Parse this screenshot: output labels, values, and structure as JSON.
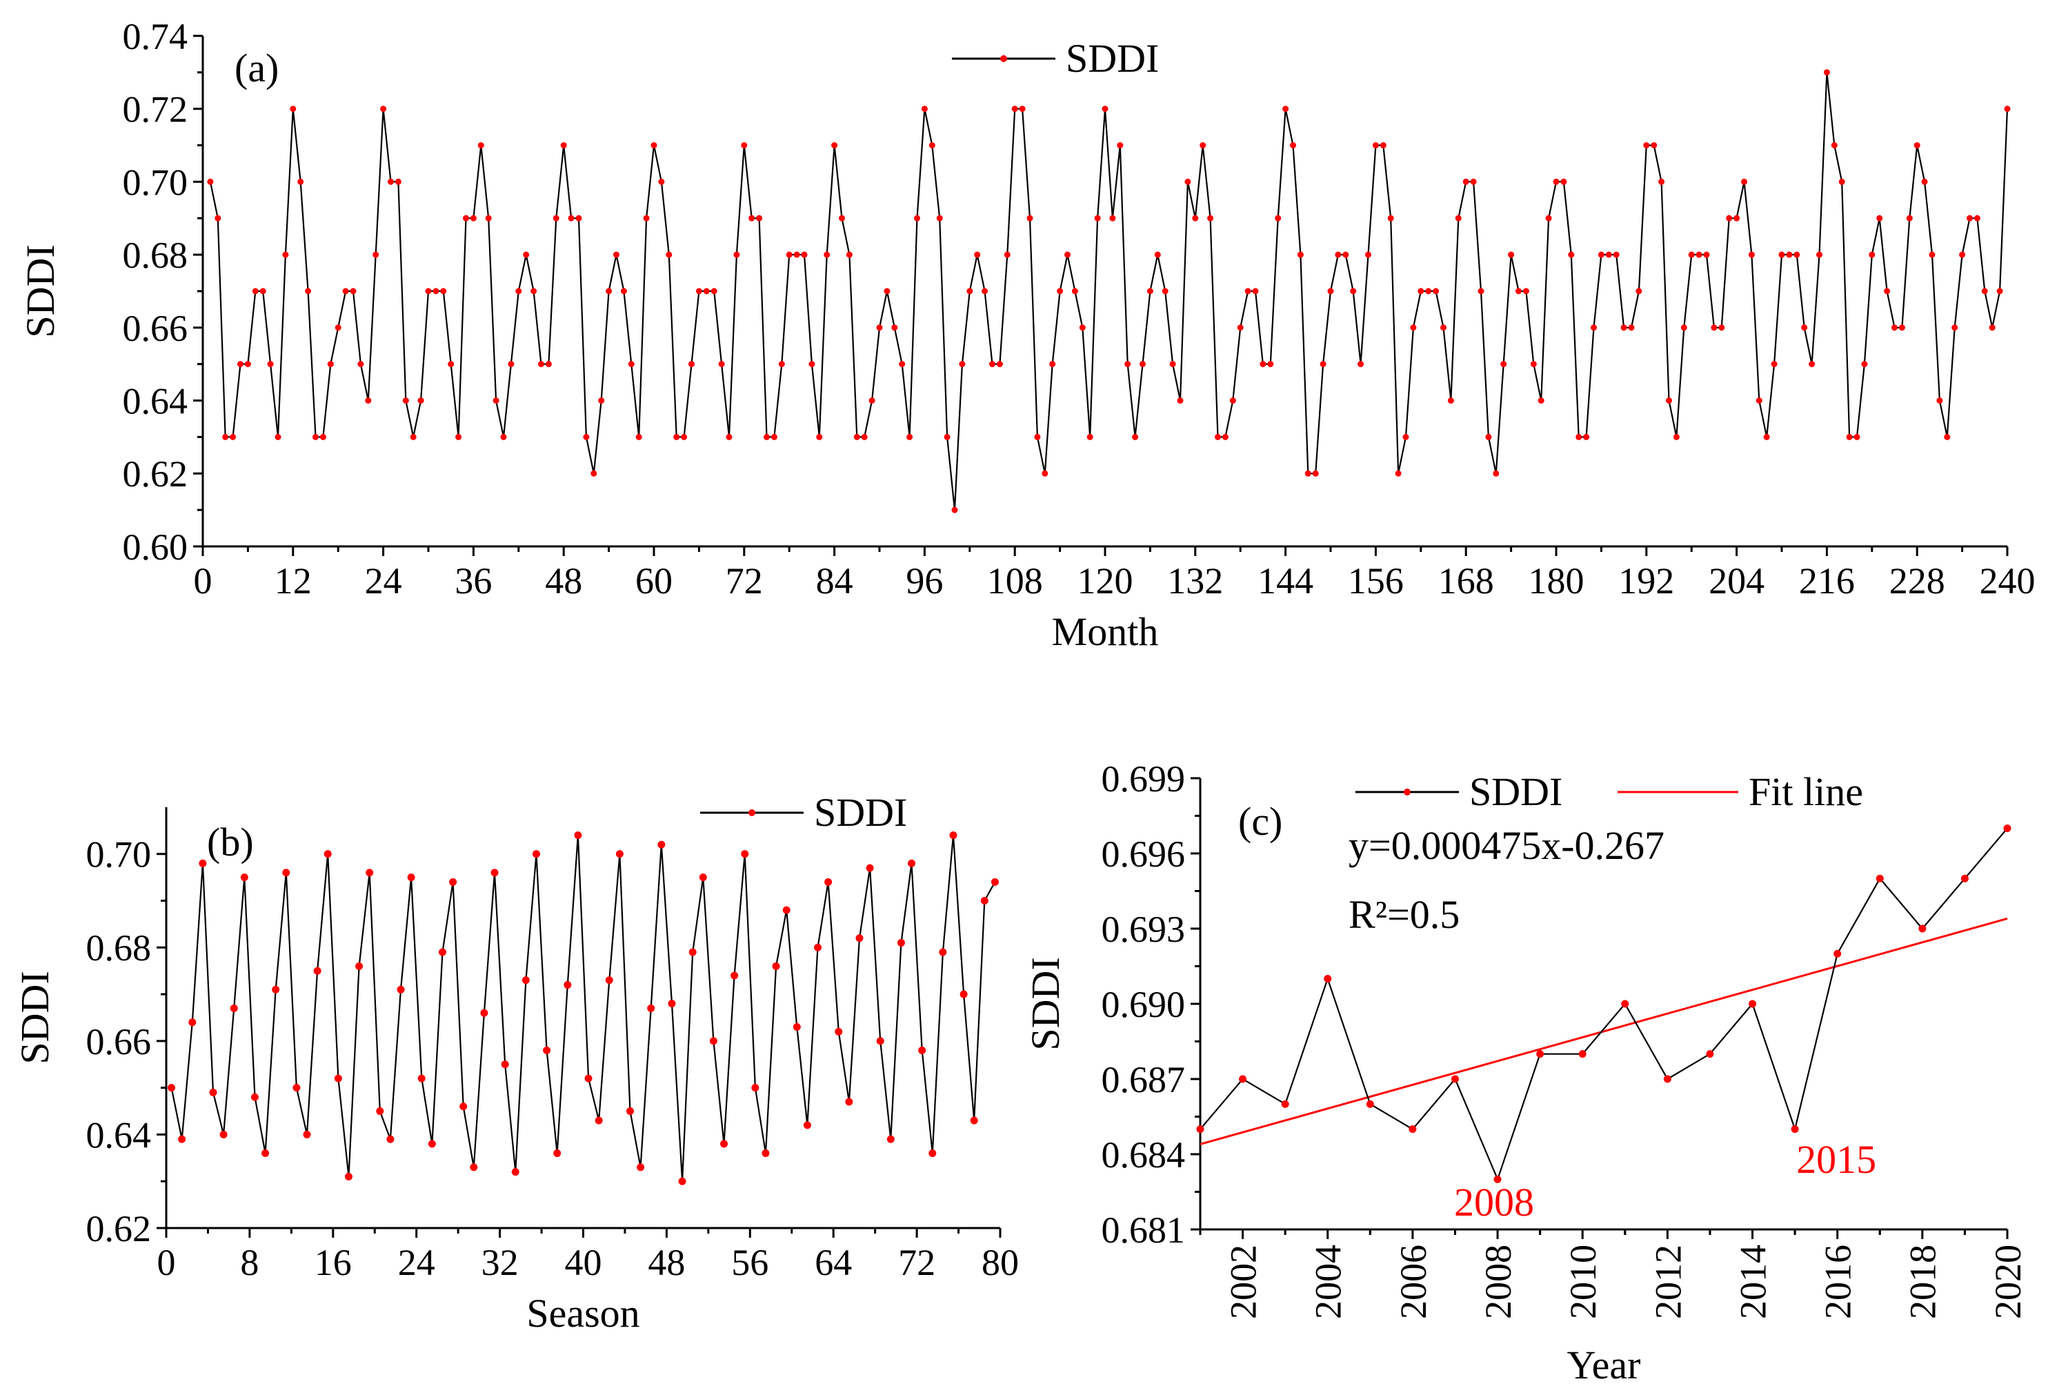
{
  "chart_data": [
    {
      "id": "a",
      "type": "line",
      "panel_label": "(a)",
      "xlabel": "Month",
      "ylabel": "SDDI",
      "xlim": [
        0,
        240
      ],
      "ylim": [
        0.6,
        0.74
      ],
      "xticks": [
        0,
        12,
        24,
        36,
        48,
        60,
        72,
        84,
        96,
        108,
        120,
        132,
        144,
        156,
        168,
        180,
        192,
        204,
        216,
        228,
        240
      ],
      "xtick_labels": [
        "0",
        "12",
        "24",
        "36",
        "48",
        "60",
        "72",
        "84",
        "96",
        "108",
        "120",
        "132",
        "144",
        "156",
        "168",
        "180",
        "192",
        "204",
        "216",
        "228",
        "240"
      ],
      "yticks": [
        0.6,
        0.62,
        0.64,
        0.66,
        0.68,
        0.7,
        0.72,
        0.74
      ],
      "ytick_labels": [
        "0.60",
        "0.62",
        "0.64",
        "0.66",
        "0.68",
        "0.70",
        "0.72",
        "0.74"
      ],
      "legend": "SDDI",
      "series": [
        {
          "name": "SDDI",
          "x_start": 1,
          "values": [
            0.7,
            0.69,
            0.63,
            0.63,
            0.65,
            0.65,
            0.67,
            0.67,
            0.65,
            0.63,
            0.68,
            0.72,
            0.7,
            0.67,
            0.63,
            0.63,
            0.65,
            0.66,
            0.67,
            0.67,
            0.65,
            0.64,
            0.68,
            0.72,
            0.7,
            0.7,
            0.64,
            0.63,
            0.64,
            0.67,
            0.67,
            0.67,
            0.65,
            0.63,
            0.69,
            0.69,
            0.71,
            0.69,
            0.64,
            0.63,
            0.65,
            0.67,
            0.68,
            0.67,
            0.65,
            0.65,
            0.69,
            0.71,
            0.69,
            0.69,
            0.63,
            0.62,
            0.64,
            0.67,
            0.68,
            0.67,
            0.65,
            0.63,
            0.69,
            0.71,
            0.7,
            0.68,
            0.63,
            0.63,
            0.65,
            0.67,
            0.67,
            0.67,
            0.65,
            0.63,
            0.68,
            0.71,
            0.69,
            0.69,
            0.63,
            0.63,
            0.65,
            0.68,
            0.68,
            0.68,
            0.65,
            0.63,
            0.68,
            0.71,
            0.69,
            0.68,
            0.63,
            0.63,
            0.64,
            0.66,
            0.67,
            0.66,
            0.65,
            0.63,
            0.69,
            0.72,
            0.71,
            0.69,
            0.63,
            0.61,
            0.65,
            0.67,
            0.68,
            0.67,
            0.65,
            0.65,
            0.68,
            0.72,
            0.72,
            0.69,
            0.63,
            0.62,
            0.65,
            0.67,
            0.68,
            0.67,
            0.66,
            0.63,
            0.69,
            0.72,
            0.69,
            0.71,
            0.65,
            0.63,
            0.65,
            0.67,
            0.68,
            0.67,
            0.65,
            0.64,
            0.7,
            0.69,
            0.71,
            0.69,
            0.63,
            0.63,
            0.64,
            0.66,
            0.67,
            0.67,
            0.65,
            0.65,
            0.69,
            0.72,
            0.71,
            0.68,
            0.62,
            0.62,
            0.65,
            0.67,
            0.68,
            0.68,
            0.67,
            0.65,
            0.68,
            0.71,
            0.71,
            0.69,
            0.62,
            0.63,
            0.66,
            0.67,
            0.67,
            0.67,
            0.66,
            0.64,
            0.69,
            0.7,
            0.7,
            0.67,
            0.63,
            0.62,
            0.65,
            0.68,
            0.67,
            0.67,
            0.65,
            0.64,
            0.69,
            0.7,
            0.7,
            0.68,
            0.63,
            0.63,
            0.66,
            0.68,
            0.68,
            0.68,
            0.66,
            0.66,
            0.67,
            0.71,
            0.71,
            0.7,
            0.64,
            0.63,
            0.66,
            0.68,
            0.68,
            0.68,
            0.66,
            0.66,
            0.69,
            0.69,
            0.7,
            0.68,
            0.64,
            0.63,
            0.65,
            0.68,
            0.68,
            0.68,
            0.66,
            0.65,
            0.68,
            0.73,
            0.71,
            0.7,
            0.63,
            0.63,
            0.65,
            0.68,
            0.69,
            0.67,
            0.66,
            0.66,
            0.69,
            0.71,
            0.7,
            0.68,
            0.64,
            0.63,
            0.66,
            0.68,
            0.69,
            0.69,
            0.67,
            0.66,
            0.67,
            0.72
          ]
        }
      ]
    },
    {
      "id": "b",
      "type": "line",
      "panel_label": "(b)",
      "xlabel": "Season",
      "ylabel": "SDDI",
      "xlim": [
        0,
        80
      ],
      "ylim": [
        0.62,
        0.71
      ],
      "xticks": [
        0,
        8,
        16,
        24,
        32,
        40,
        48,
        56,
        64,
        72,
        80
      ],
      "xtick_labels": [
        "0",
        "8",
        "16",
        "24",
        "32",
        "40",
        "48",
        "56",
        "64",
        "72",
        "80"
      ],
      "yticks": [
        0.62,
        0.64,
        0.66,
        0.68,
        0.7
      ],
      "ytick_labels": [
        "0.62",
        "0.64",
        "0.66",
        "0.68",
        "0.70"
      ],
      "legend": "SDDI",
      "series": [
        {
          "name": "SDDI",
          "x_start": 0.5,
          "values": [
            0.65,
            0.639,
            0.664,
            0.698,
            0.649,
            0.64,
            0.667,
            0.695,
            0.648,
            0.636,
            0.671,
            0.696,
            0.65,
            0.64,
            0.675,
            0.7,
            0.652,
            0.631,
            0.676,
            0.696,
            0.645,
            0.639,
            0.671,
            0.695,
            0.652,
            0.638,
            0.679,
            0.694,
            0.646,
            0.633,
            0.666,
            0.696,
            0.655,
            0.632,
            0.673,
            0.7,
            0.658,
            0.636,
            0.672,
            0.704,
            0.652,
            0.643,
            0.673,
            0.7,
            0.645,
            0.633,
            0.667,
            0.702,
            0.668,
            0.63,
            0.679,
            0.695,
            0.66,
            0.638,
            0.674,
            0.7,
            0.65,
            0.636,
            0.676,
            0.688,
            0.663,
            0.642,
            0.68,
            0.694,
            0.662,
            0.647,
            0.682,
            0.697,
            0.66,
            0.639,
            0.681,
            0.698,
            0.658,
            0.636,
            0.679,
            0.704,
            0.67,
            0.643,
            0.69,
            0.694
          ]
        }
      ]
    },
    {
      "id": "c",
      "type": "line",
      "panel_label": "(c)",
      "xlabel": "Year",
      "ylabel": "SDDI",
      "xlim": [
        2001,
        2020
      ],
      "ylim": [
        0.681,
        0.699
      ],
      "xticks": [
        2002,
        2004,
        2006,
        2008,
        2010,
        2012,
        2014,
        2016,
        2018,
        2020
      ],
      "xtick_labels": [
        "2002",
        "2004",
        "2006",
        "2008",
        "2010",
        "2012",
        "2014",
        "2016",
        "2018",
        "2020"
      ],
      "yticks": [
        0.681,
        0.684,
        0.687,
        0.69,
        0.693,
        0.696,
        0.699
      ],
      "ytick_labels": [
        "0.681",
        "0.684",
        "0.687",
        "0.690",
        "0.693",
        "0.696",
        "0.699"
      ],
      "legend": [
        "SDDI",
        "Fit line"
      ],
      "annotations": {
        "equation": "y=0.000475x-0.267",
        "r_squared": "R²=0.5",
        "marks": [
          {
            "text": "2008",
            "x": 2008
          },
          {
            "text": "2015",
            "x": 2015
          }
        ]
      },
      "series": [
        {
          "name": "SDDI",
          "x": [
            2001,
            2002,
            2003,
            2004,
            2005,
            2006,
            2007,
            2008,
            2009,
            2010,
            2011,
            2012,
            2013,
            2014,
            2015,
            2016,
            2017,
            2018,
            2019,
            2020
          ],
          "values": [
            0.685,
            0.687,
            0.686,
            0.691,
            0.686,
            0.685,
            0.687,
            0.683,
            0.688,
            0.688,
            0.69,
            0.687,
            0.688,
            0.69,
            0.685,
            0.692,
            0.695,
            0.693,
            0.695,
            0.697
          ]
        },
        {
          "name": "Fit line",
          "x": [
            2001,
            2020
          ],
          "values": [
            0.6844,
            0.6934
          ]
        }
      ]
    }
  ],
  "colors": {
    "line": "#000000",
    "marker": "#ff0000",
    "fit": "#ff0000",
    "annotation": "#ff0000"
  }
}
